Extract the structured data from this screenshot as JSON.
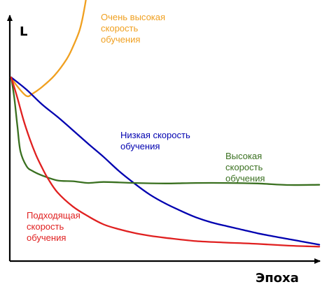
{
  "chart_data": {
    "type": "line",
    "title": "",
    "xlabel": "Эпоха",
    "ylabel": "L",
    "grid": false,
    "legend": "inline",
    "xlim": [
      0,
      100
    ],
    "ylim": [
      0,
      100
    ],
    "series": [
      {
        "name": "Очень высокая скорость обучения",
        "color": "#f0a020",
        "label_lines": [
          "Очень высокая",
          "скорость",
          "обучения"
        ],
        "x": [
          0,
          2,
          5,
          7,
          10,
          14,
          18,
          20,
          22,
          23,
          24,
          25
        ],
        "y": [
          71.6,
          68.0,
          64.2,
          65.2,
          67.8,
          72.3,
          78.8,
          83.6,
          89.5,
          94.1,
          100.5,
          108.4
        ]
      },
      {
        "name": "Низкая скорость обучения",
        "color": "#0000b0",
        "label_lines": [
          "Низкая скорость",
          "обучения"
        ],
        "x": [
          0,
          5,
          10,
          15,
          20,
          25,
          30,
          35,
          40,
          45,
          50,
          55,
          60,
          65,
          70,
          75,
          80,
          85,
          90,
          95,
          100
        ],
        "y": [
          71.6,
          66.7,
          60.9,
          56.0,
          50.7,
          45.3,
          40.1,
          34.5,
          29.6,
          25.2,
          21.7,
          18.8,
          16.2,
          14.2,
          12.7,
          11.3,
          9.9,
          8.7,
          7.6,
          6.5,
          5.4
        ]
      },
      {
        "name": "Высокая скорость обучения",
        "color": "#3a7020",
        "label_lines": [
          "Высокая",
          "скорость",
          "обучения"
        ],
        "x": [
          0,
          1,
          2,
          3,
          5,
          7,
          10,
          15,
          20,
          25,
          30,
          40,
          50,
          60,
          70,
          80,
          90,
          100
        ],
        "y": [
          71.6,
          63.5,
          52.4,
          42.3,
          36.4,
          34.5,
          32.8,
          30.8,
          30.5,
          29.8,
          30.2,
          29.8,
          29.6,
          29.8,
          29.8,
          29.6,
          29.0,
          29.1
        ]
      },
      {
        "name": "Подходящая скорость обучения",
        "color": "#e02020",
        "label_lines": [
          "Подходящая",
          "скорость",
          "обучения"
        ],
        "x": [
          0,
          2,
          4,
          6,
          8,
          10,
          12,
          15,
          20,
          25,
          30,
          35,
          40,
          45,
          50,
          60,
          70,
          80,
          90,
          100
        ],
        "y": [
          71.6,
          63.5,
          54.7,
          47.3,
          41.0,
          35.9,
          31.4,
          26.1,
          20.5,
          16.6,
          13.4,
          11.5,
          10.0,
          8.9,
          8.1,
          6.8,
          6.2,
          5.7,
          5.0,
          4.6
        ]
      }
    ]
  }
}
